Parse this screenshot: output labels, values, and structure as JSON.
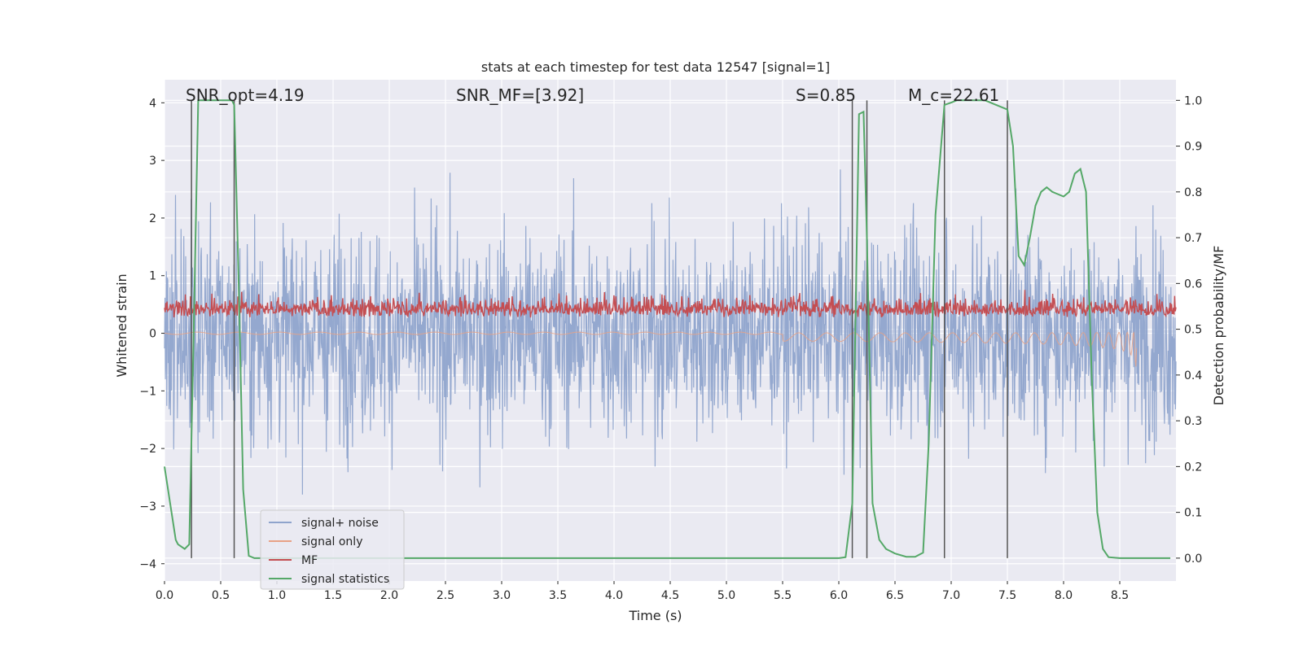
{
  "chart_data": {
    "type": "line",
    "title": "stats at each timestep for test data 12547 [signal=1]",
    "xlabel": "Time (s)",
    "ylabel": "Whitened strain",
    "y2label": "Detection probability/MF",
    "xlim": [
      0.0,
      9.0
    ],
    "ylim": [
      -4.3,
      4.4
    ],
    "y2lim": [
      -0.05,
      1.045
    ],
    "xticks": [
      0.0,
      0.5,
      1.0,
      1.5,
      2.0,
      2.5,
      3.0,
      3.5,
      4.0,
      4.5,
      5.0,
      5.5,
      6.0,
      6.5,
      7.0,
      7.5,
      8.0,
      8.5
    ],
    "xtick_labels": [
      "0.0",
      "0.5",
      "1.0",
      "1.5",
      "2.0",
      "2.5",
      "3.0",
      "3.5",
      "4.0",
      "4.5",
      "5.0",
      "5.5",
      "6.0",
      "6.5",
      "7.0",
      "7.5",
      "8.0",
      "8.5"
    ],
    "yticks": [
      4,
      3,
      2,
      1,
      0,
      -1,
      -2,
      -3,
      -4
    ],
    "ytick_labels": [
      "4",
      "3",
      "2",
      "1",
      "0",
      "−1",
      "−2",
      "−3",
      "−4"
    ],
    "y2ticks": [
      1.0,
      0.9,
      0.8,
      0.7,
      0.6,
      0.5,
      0.4,
      0.3,
      0.2,
      0.1,
      0.0
    ],
    "y2tick_labels": [
      "1.0",
      "0.9",
      "0.8",
      "0.7",
      "0.6",
      "0.5",
      "0.4",
      "0.3",
      "0.2",
      "0.1",
      "0.0"
    ],
    "annotations": [
      {
        "text": "SNR_opt=4.19",
        "x": 0.2
      },
      {
        "text": "SNR_MF=[3.92]",
        "x": 2.6
      },
      {
        "text": "S=0.85",
        "x": 5.6
      },
      {
        "text": "M_c=22.61",
        "x": 6.6
      }
    ],
    "legend": [
      "signal+ noise",
      "signal only",
      "MF",
      "signal statistics"
    ],
    "legend_location": "lower left",
    "colors": {
      "noise": "#8fa4cc",
      "signal": "#e8a286",
      "mf": "#c44e52",
      "stats": "#55a868",
      "vline": "#555555",
      "background": "#eaeaf2",
      "grid": "#ffffff"
    },
    "vertical_lines": [
      0.24,
      0.62,
      6.12,
      6.25,
      6.94,
      7.5
    ],
    "series": [
      {
        "name": "signal statistics",
        "axis": "right",
        "x": [
          0.0,
          0.05,
          0.1,
          0.12,
          0.18,
          0.22,
          0.26,
          0.3,
          0.34,
          0.4,
          0.5,
          0.55,
          0.6,
          0.62,
          0.66,
          0.7,
          0.75,
          0.8,
          0.9,
          1.0,
          2.0,
          3.0,
          4.0,
          5.0,
          5.5,
          6.0,
          6.06,
          6.12,
          6.18,
          6.22,
          6.25,
          6.3,
          6.36,
          6.42,
          6.5,
          6.6,
          6.68,
          6.75,
          6.8,
          6.86,
          6.94,
          7.0,
          7.05,
          7.1,
          7.2,
          7.3,
          7.4,
          7.5,
          7.55,
          7.6,
          7.65,
          7.7,
          7.75,
          7.8,
          7.85,
          7.9,
          8.0,
          8.05,
          8.1,
          8.15,
          8.2,
          8.25,
          8.3,
          8.35,
          8.4,
          8.5,
          8.6,
          8.7,
          8.8,
          8.95
        ],
        "values": [
          0.2,
          0.12,
          0.04,
          0.03,
          0.02,
          0.03,
          0.5,
          1.0,
          1.0,
          1.0,
          1.0,
          1.0,
          1.0,
          0.99,
          0.6,
          0.15,
          0.005,
          0.0,
          0.0,
          0.0,
          0.0,
          0.0,
          0.0,
          0.0,
          0.0,
          0.0,
          0.002,
          0.12,
          0.97,
          0.975,
          0.7,
          0.12,
          0.04,
          0.02,
          0.01,
          0.003,
          0.003,
          0.012,
          0.25,
          0.75,
          0.99,
          0.995,
          1.0,
          1.0,
          1.0,
          1.0,
          0.99,
          0.98,
          0.9,
          0.66,
          0.64,
          0.7,
          0.77,
          0.8,
          0.81,
          0.8,
          0.79,
          0.8,
          0.84,
          0.85,
          0.8,
          0.4,
          0.1,
          0.02,
          0.002,
          0.0,
          0.0,
          0.0,
          0.0,
          0.0
        ]
      }
    ]
  }
}
